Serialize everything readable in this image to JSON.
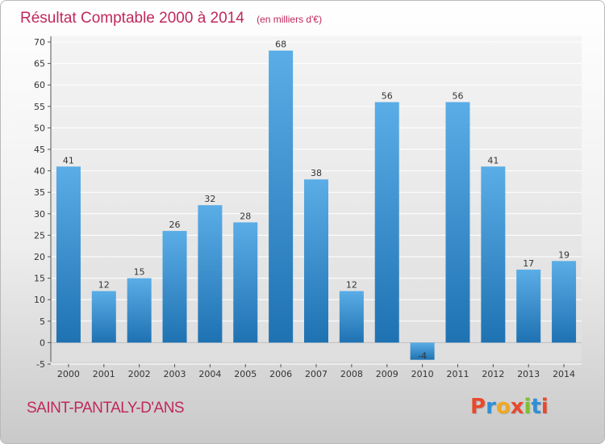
{
  "header": {
    "title": "Résultat Comptable 2000 à 2014",
    "unit": "(en milliers d'€)"
  },
  "footer": {
    "commune": "SAINT-PANTALY-D'ANS",
    "logo": "Proxiti"
  },
  "colors": {
    "title": "#c0285a",
    "bar_top": "#5aade6",
    "bar_bottom": "#1f72b2",
    "logo_letters": [
      "#e8492e",
      "#2f8fd8",
      "#f0a81e",
      "#e8492e",
      "#7cbf35",
      "#2f8fd8",
      "#e8492e"
    ]
  },
  "chart_data": {
    "type": "bar",
    "title": "Résultat Comptable 2000 à 2014",
    "subtitle": "(en milliers d'€)",
    "categories": [
      "2000",
      "2001",
      "2002",
      "2003",
      "2004",
      "2005",
      "2006",
      "2007",
      "2008",
      "2009",
      "2010",
      "2011",
      "2012",
      "2013",
      "2014"
    ],
    "values": [
      41,
      12,
      15,
      26,
      32,
      28,
      68,
      38,
      12,
      56,
      -4,
      56,
      41,
      17,
      19
    ],
    "value_labels": [
      "41",
      "12",
      "15",
      "26",
      "32",
      "28",
      "68",
      "38",
      "12",
      "56",
      "-4",
      "56",
      "41",
      "17",
      "19"
    ],
    "ylim": [
      -5,
      70
    ],
    "yticks": [
      -5,
      0,
      5,
      10,
      15,
      20,
      25,
      30,
      35,
      40,
      45,
      50,
      55,
      60,
      65,
      70
    ],
    "grid": true,
    "legend": "none"
  }
}
